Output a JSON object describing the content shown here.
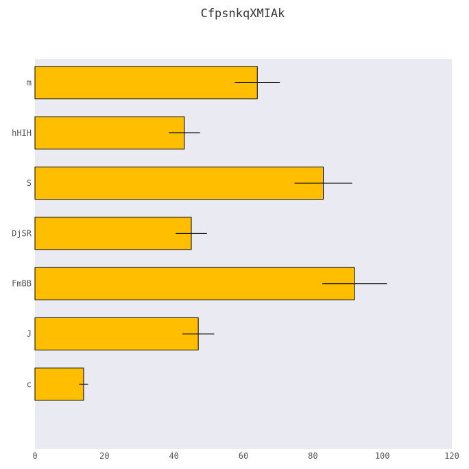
{
  "chart_data": {
    "type": "bar",
    "orientation": "horizontal",
    "title": "CfpsnkqXMIAk",
    "xlabel": "",
    "ylabel": "",
    "categories": [
      "m",
      "hHIH",
      "S",
      "DjSR",
      "FmBB",
      "J",
      "c"
    ],
    "values": [
      64,
      43,
      83,
      45,
      92,
      47,
      14
    ],
    "errors": [
      6.5,
      4.5,
      8.3,
      4.5,
      9.3,
      4.6,
      1.3
    ],
    "xlim": [
      0,
      120
    ],
    "xticks": [
      0,
      20,
      40,
      60,
      80,
      100,
      120
    ],
    "grid": false,
    "legend": "none",
    "colors": {
      "bar": "#FFBF00",
      "bar_edge": "#000000",
      "plot_bg": "#EAEAF2",
      "error_bar": "#000000"
    }
  }
}
